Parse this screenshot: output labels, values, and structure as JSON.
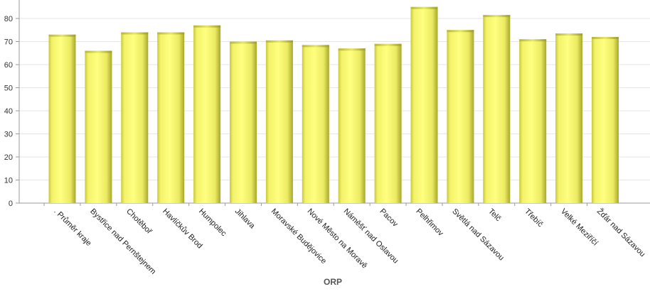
{
  "chart_data": {
    "type": "bar",
    "title": "",
    "xlabel": "ORP",
    "ylabel": "",
    "ylim": [
      0,
      88
    ],
    "yticks": [
      0,
      10,
      20,
      30,
      40,
      50,
      60,
      70,
      80
    ],
    "grid": true,
    "bar_color": "#f6f56a",
    "categories": [
      ". Průměr kraje",
      "Bystřice nad Pernštejnem",
      "Chotěboř",
      "Havlíčkův Brod",
      "Humpolec",
      "Jihlava",
      "Moravské Budějovice",
      "Nové Město na Moravě",
      "Náměšť nad Oslavou",
      "Pacov",
      "Pelhřimov",
      "Světlá nad Sázavou",
      "Telč",
      "Třebíč",
      "Velké Meziříčí",
      "Žďár nad Sázavou"
    ],
    "values": [
      73,
      66,
      74,
      74,
      77,
      70,
      70.5,
      68.5,
      67,
      69,
      85,
      75,
      81.5,
      71,
      73.5,
      72
    ]
  }
}
